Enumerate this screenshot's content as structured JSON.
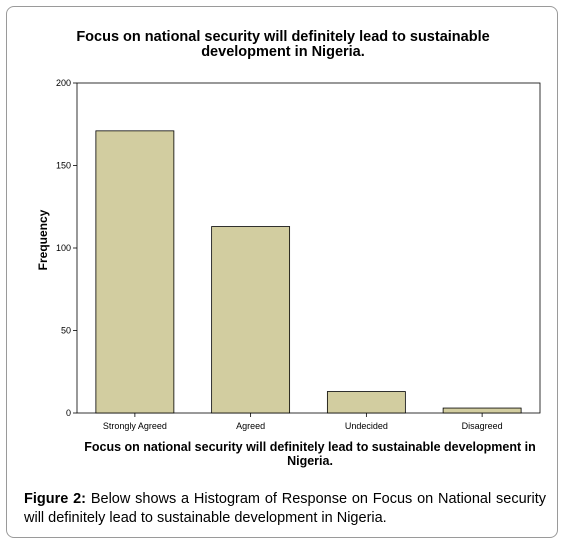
{
  "caption": {
    "label": "Figure 2:",
    "text": " Below shows a Histogram of Response on Focus on National security will definitely lead to sustainable development in Nigeria."
  },
  "chart_data": {
    "type": "bar",
    "title": "Focus on national security will definitely lead to sustainable development in Nigeria.",
    "xlabel": "Focus on national security will definitely lead to sustainable development in Nigeria.",
    "ylabel": "Frequency",
    "categories": [
      "Strongly Agreed",
      "Agreed",
      "Undecided",
      "Disagreed"
    ],
    "values": [
      171,
      113,
      13,
      3
    ],
    "ylim": [
      0,
      200
    ],
    "yticks": [
      0,
      50,
      100,
      150,
      200
    ],
    "grid": false,
    "bar_color": "#d2cda0",
    "bar_edge_color": "#000000"
  }
}
